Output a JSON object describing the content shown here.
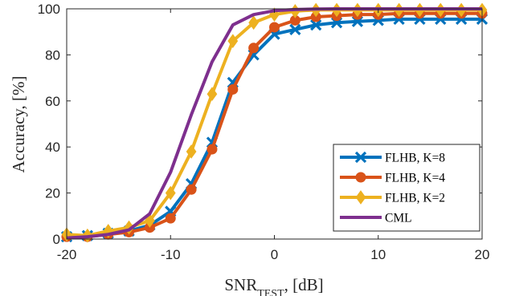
{
  "chart_data": {
    "type": "line",
    "x": [
      -20,
      -18,
      -16,
      -14,
      -12,
      -10,
      -8,
      -6,
      -4,
      -2,
      0,
      2,
      4,
      6,
      8,
      10,
      12,
      14,
      16,
      18,
      20
    ],
    "series": [
      {
        "name": "FLHB, K=8",
        "color": "#0072BD",
        "marker": "x",
        "values": [
          1,
          1.5,
          2.5,
          3.5,
          6,
          12,
          24,
          42,
          68,
          80,
          89,
          91,
          93,
          94,
          94.5,
          95,
          95.5,
          95.5,
          95.5,
          95.5,
          95.5
        ]
      },
      {
        "name": "FLHB, K=4",
        "color": "#D95319",
        "marker": "circle",
        "values": [
          1,
          1,
          2,
          3,
          5,
          9,
          21.5,
          39,
          65,
          83,
          92,
          95,
          96.5,
          97,
          97.5,
          97.5,
          98,
          98,
          98,
          98,
          98
        ]
      },
      {
        "name": "FLHB, K=2",
        "color": "#EDB120",
        "marker": "diamond",
        "values": [
          2,
          1.5,
          3.5,
          5,
          8,
          20,
          38,
          63,
          86,
          94,
          97.5,
          99,
          99.5,
          99.5,
          99.5,
          99.5,
          99.5,
          99.5,
          99.5,
          99.5,
          99.5
        ]
      },
      {
        "name": "CML",
        "color": "#7E2F8E",
        "marker": "none",
        "values": [
          0.5,
          1,
          2,
          4,
          11,
          29,
          54,
          77,
          93,
          97.5,
          99.2,
          99.7,
          99.9,
          100,
          100,
          100,
          100,
          100,
          100,
          100,
          100
        ]
      }
    ],
    "xlim": [
      -20,
      20
    ],
    "ylim": [
      0,
      100
    ],
    "xticks": [
      "-20",
      "-10",
      "0",
      "10",
      "20"
    ],
    "yticks": [
      "0",
      "20",
      "40",
      "60",
      "80",
      "100"
    ],
    "xlabel_main": "SNR",
    "xlabel_sub": "TEST",
    "xlabel_unit": ", [dB]",
    "ylabel": "Accuracy, [%]",
    "legend_position": "bottom-right",
    "grid": false
  }
}
